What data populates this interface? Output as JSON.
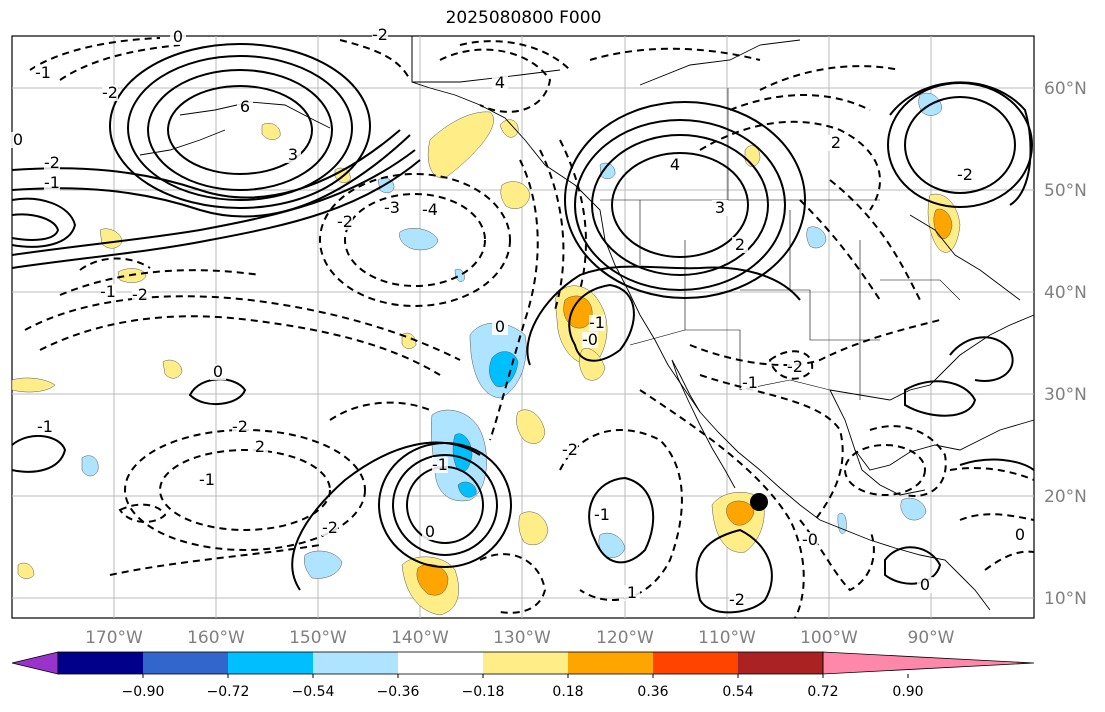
{
  "title": "2025080800 F000",
  "map": {
    "lon_ticks": [
      "170°W",
      "160°W",
      "150°W",
      "140°W",
      "130°W",
      "120°W",
      "110°W",
      "100°W",
      "90°W"
    ],
    "lat_ticks": [
      "60°N",
      "50°N",
      "40°N",
      "30°N",
      "20°N",
      "10°N"
    ],
    "marker": {
      "lon": "107°W",
      "lat": "19°N"
    }
  },
  "contour_labels": [
    "0",
    "-2",
    "4",
    "6",
    "-1",
    "-2",
    "3",
    "-4",
    "-3",
    "-2",
    "4",
    "3",
    "-1",
    "-2",
    "0",
    "-0",
    "0",
    "-1",
    "-2",
    "2",
    "-1",
    "-1",
    "0",
    "-2",
    "-2",
    "-1",
    "-2",
    "1",
    "0",
    "-0",
    "-1",
    "-2",
    "2",
    "-2",
    "2",
    "-1",
    "0",
    "-2",
    "-1",
    "0"
  ],
  "colorbar": {
    "colors": [
      "#9933cc",
      "#00008b",
      "#3366cc",
      "#00bfff",
      "#aee4ff",
      "#ffffff",
      "#ffee88",
      "#ffa500",
      "#ff4400",
      "#aa2222",
      "#ff88aa"
    ],
    "tick_labels": [
      "−0.90",
      "−0.72",
      "−0.54",
      "−0.36",
      "−0.18",
      "0.18",
      "0.36",
      "0.54",
      "0.72",
      "0.90"
    ]
  }
}
